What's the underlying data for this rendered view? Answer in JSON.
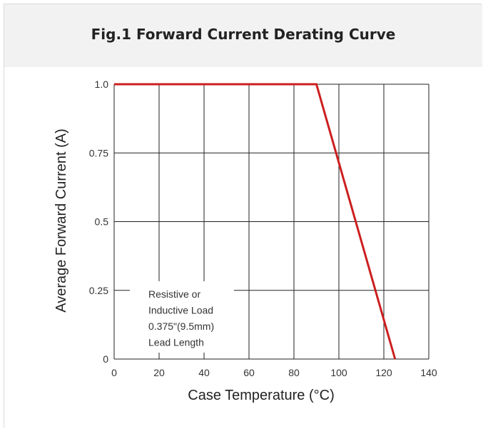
{
  "chart_data": {
    "type": "line",
    "title": "Fig.1 Forward Current Derating Curve",
    "xlabel": "Case Temperature (°C)",
    "ylabel": "Average Forward Current (A)",
    "xlim": [
      0,
      140
    ],
    "ylim": [
      0,
      1.0
    ],
    "x_ticks": [
      "0",
      "20",
      "40",
      "60",
      "80",
      "100",
      "120",
      "140"
    ],
    "y_ticks": [
      "0",
      "0.25",
      "0.5",
      "0.75",
      "1.0"
    ],
    "grid": true,
    "series": [
      {
        "x": [
          0,
          90,
          125
        ],
        "y": [
          1.0,
          1.0,
          0.0
        ],
        "color": "#cc1f1f"
      }
    ],
    "annotation": [
      "Resistive or",
      "Inductive Load",
      "0.375\"(9.5mm)",
      "Lead Length"
    ]
  }
}
